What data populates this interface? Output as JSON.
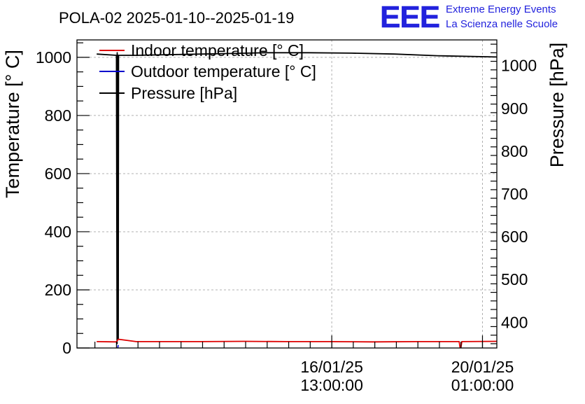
{
  "chart_data": {
    "type": "line",
    "title": "POLA-02 2025-01-10--2025-01-19",
    "ylabel": "Temperature [° C]",
    "y2label": "Pressure [hPa]",
    "xlabel": "",
    "ylim": [
      0,
      1060
    ],
    "y2lim": [
      340,
      1060
    ],
    "xlim": [
      "2025-01-10T15:00:00",
      "2025-01-20T09:00:00"
    ],
    "yticks": [
      0,
      200,
      400,
      600,
      800,
      1000
    ],
    "y2ticks": [
      400,
      500,
      600,
      700,
      800,
      900,
      1000
    ],
    "xticks": [
      {
        "x": "2025-01-16T13:00:00",
        "date": "16/01/25",
        "time": "13:00:00"
      },
      {
        "x": "2025-01-20T01:00:00",
        "date": "20/01/25",
        "time": "01:00:00"
      }
    ],
    "grid": true,
    "legend_position": "top-left",
    "series": [
      {
        "name": "Indoor temperature [° C]",
        "axis": "left",
        "color": "#dd0000",
        "x": [
          "2025-01-11T02:00:00",
          "2025-01-11T13:00:00",
          "2025-01-11T14:00:00",
          "2025-01-12T00:00:00",
          "2025-01-13T12:00:00",
          "2025-01-14T12:00:00",
          "2025-01-15T12:00:00",
          "2025-01-16T12:00:00",
          "2025-01-17T12:00:00",
          "2025-01-18T12:00:00",
          "2025-01-19T12:00:00",
          "2025-01-19T12:30:00",
          "2025-01-19T13:00:00",
          "2025-01-19T13:30:00",
          "2025-01-20T09:00:00"
        ],
        "values": [
          22,
          21,
          30,
          22,
          22,
          23,
          22,
          22,
          21,
          22,
          22,
          2,
          2,
          22,
          23
        ]
      },
      {
        "name": "Outdoor temperature [° C]",
        "axis": "left",
        "color": "#0000cc",
        "x": [
          "2025-01-11T13:45:00",
          "2025-01-11T13:55:00"
        ],
        "values": [
          0,
          10
        ]
      },
      {
        "name": "Pressure [hPa]",
        "axis": "right",
        "color": "#000000",
        "x": [
          "2025-01-11T02:00:00",
          "2025-01-11T13:00:00",
          "2025-01-11T13:20:00",
          "2025-01-11T13:25:00",
          "2025-01-11T13:30:00",
          "2025-01-11T13:35:00",
          "2025-01-11T13:40:00",
          "2025-01-11T13:45:00",
          "2025-01-11T13:50:00",
          "2025-01-11T14:00:00",
          "2025-01-11T14:10:00",
          "2025-01-12T00:00:00",
          "2025-01-13T00:00:00",
          "2025-01-14T00:00:00",
          "2025-01-15T00:00:00",
          "2025-01-16T00:00:00",
          "2025-01-17T00:00:00",
          "2025-01-18T00:00:00",
          "2025-01-19T00:00:00",
          "2025-01-20T09:00:00"
        ],
        "values": [
          1027,
          1024,
          350,
          1030,
          600,
          1025,
          700,
          480,
          1024,
          360,
          1024,
          1024,
          1026,
          1028,
          1030,
          1030,
          1029,
          1027,
          1023,
          1020
        ]
      }
    ]
  },
  "logo": {
    "mark": "EEE",
    "line1": "Extreme Energy Events",
    "line2": "La Scienza nelle Scuole",
    "color": "#2222dd"
  }
}
